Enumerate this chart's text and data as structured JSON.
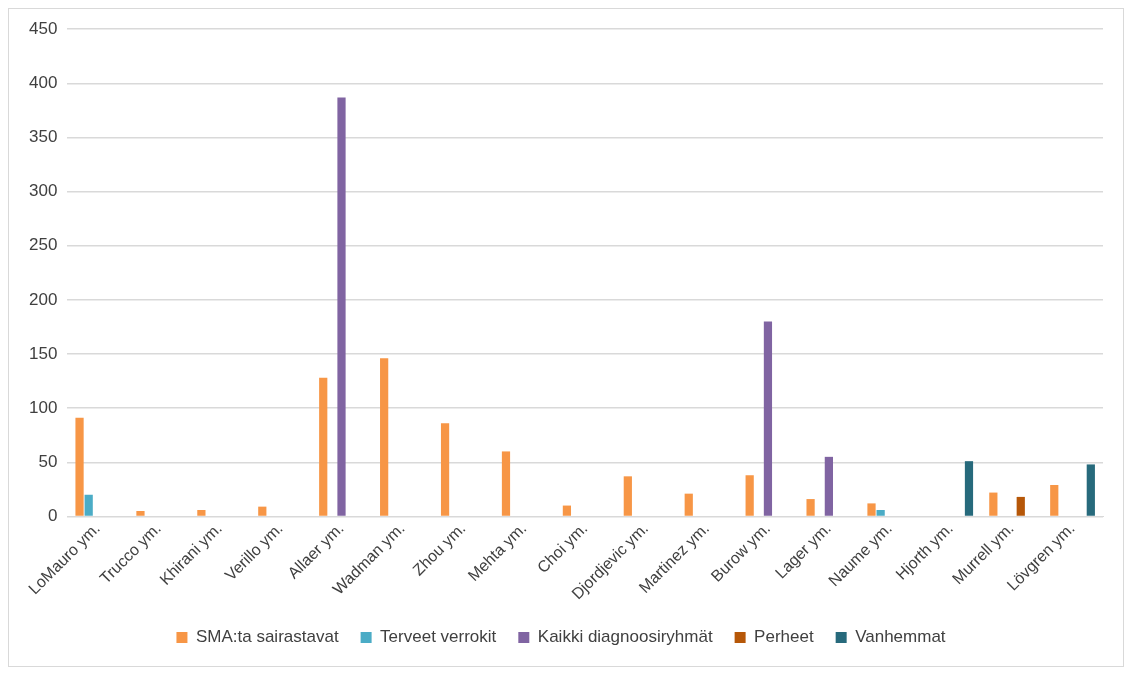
{
  "chart_data": {
    "type": "bar",
    "categories": [
      "LoMauro ym.",
      "Trucco ym.",
      "Khirani ym.",
      "Verillo ym.",
      "Allaer ym.",
      "Wadman ym.",
      "Zhou ym.",
      "Mehta ym.",
      "Choi ym.",
      "Djordjevic ym.",
      "Martinez ym.",
      "Burow ym.",
      "Lager ym.",
      "Naume ym.",
      "Hjorth ym.",
      "Murrell ym.",
      "Lövgren ym."
    ],
    "series": [
      {
        "name": "SMA:ta sairastavat",
        "color": "#f79646",
        "values": [
          91,
          5,
          6,
          9,
          128,
          146,
          86,
          60,
          10,
          37,
          21,
          38,
          16,
          12,
          null,
          22,
          29
        ]
      },
      {
        "name": "Terveet verrokit",
        "color": "#4bacc6",
        "values": [
          20,
          null,
          null,
          null,
          null,
          null,
          null,
          null,
          null,
          null,
          null,
          null,
          null,
          6,
          null,
          null,
          null
        ]
      },
      {
        "name": "Kaikki diagnoosiryhmät",
        "color": "#8064a2",
        "values": [
          null,
          null,
          null,
          null,
          387,
          null,
          null,
          null,
          null,
          null,
          null,
          180,
          55,
          null,
          null,
          null,
          null
        ]
      },
      {
        "name": "Perheet",
        "color": "#b65708",
        "values": [
          null,
          null,
          null,
          null,
          null,
          null,
          null,
          null,
          null,
          null,
          null,
          null,
          null,
          null,
          null,
          18,
          null
        ]
      },
      {
        "name": "Vanhemmat",
        "color": "#276a7c",
        "values": [
          null,
          null,
          null,
          null,
          null,
          null,
          null,
          null,
          null,
          null,
          null,
          null,
          null,
          null,
          51,
          null,
          48
        ]
      }
    ],
    "ylim": [
      0,
      450
    ],
    "yticks": [
      0,
      50,
      100,
      150,
      200,
      250,
      300,
      350,
      400,
      450
    ],
    "grid": "y",
    "legend": "bottom"
  }
}
